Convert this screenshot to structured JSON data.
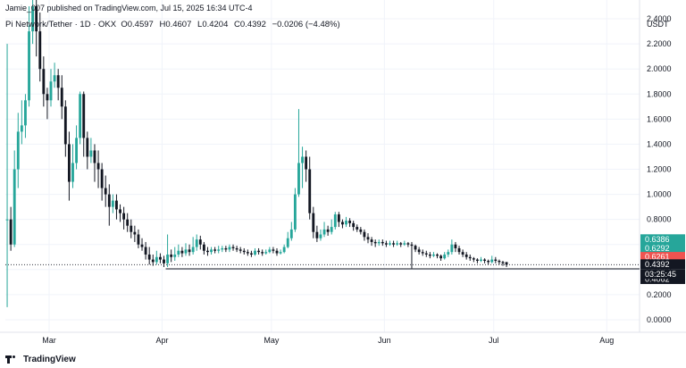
{
  "header": {
    "published": "Jamie_007 published on TradingView.com, Jul 15, 2025 16:34 UTC-4",
    "symbol": "Pi Network/Tether · 1D · OKX",
    "ohlc": [
      {
        "label": "O",
        "value": "0.4597"
      },
      {
        "label": "H",
        "value": "0.4607"
      },
      {
        "label": "L",
        "value": "0.4204"
      },
      {
        "label": "C",
        "value": "0.4392"
      }
    ],
    "change": "−0.0206 (−4.48%)"
  },
  "footer": {
    "brand": "TradingView"
  },
  "colors": {
    "up": "#26a69a",
    "down": "#131722",
    "grid": "#f0f3fa",
    "text": "#131722",
    "badge_current": "#131722",
    "badge_green": "#26a69a",
    "badge_red": "#ef5350"
  },
  "chart_data": {
    "type": "candlestick",
    "y_axis_title": "USDT",
    "ylim": [
      -0.1,
      2.55
    ],
    "y_ticks": [
      {
        "v": 0.0,
        "label": "0.0000"
      },
      {
        "v": 0.2,
        "label": "0.2000"
      },
      {
        "v": 0.4,
        "label": "0.4000"
      },
      {
        "v": 0.6,
        "label": "0.6000"
      },
      {
        "v": 0.8,
        "label": "0.8000"
      },
      {
        "v": 1.0,
        "label": "1.0000"
      },
      {
        "v": 1.2,
        "label": "1.2000"
      },
      {
        "v": 1.4,
        "label": "1.4000"
      },
      {
        "v": 1.6,
        "label": "1.6000"
      },
      {
        "v": 1.8,
        "label": "1.8000"
      },
      {
        "v": 2.0,
        "label": "2.0000"
      },
      {
        "v": 2.2,
        "label": "2.2000"
      },
      {
        "v": 2.4,
        "label": "2.4000"
      }
    ],
    "x_range_days": [
      0,
      174
    ],
    "x_ticks": [
      {
        "day": 12,
        "label": "Mar"
      },
      {
        "day": 43,
        "label": "Apr"
      },
      {
        "day": 73,
        "label": "May"
      },
      {
        "day": 104,
        "label": "Jun"
      },
      {
        "day": 134,
        "label": "Jul"
      },
      {
        "day": 165,
        "label": "Aug"
      }
    ],
    "candles": [
      [
        0.8,
        0.8,
        2.2,
        0.1
      ],
      [
        0.8,
        0.6,
        0.9,
        0.55
      ],
      [
        0.6,
        1.2,
        1.35,
        0.58
      ],
      [
        1.2,
        1.5,
        1.65,
        1.05
      ],
      [
        1.5,
        1.55,
        1.75,
        1.4
      ],
      [
        1.55,
        1.75,
        1.8,
        1.45
      ],
      [
        1.75,
        2.3,
        2.5,
        1.7
      ],
      [
        2.3,
        2.5,
        2.55,
        2.2
      ],
      [
        2.5,
        2.3,
        2.55,
        2.1
      ],
      [
        2.3,
        2.0,
        2.45,
        1.9
      ],
      [
        2.0,
        1.8,
        2.1,
        1.7
      ],
      [
        1.8,
        1.75,
        1.85,
        1.6
      ],
      [
        1.75,
        1.9,
        2.0,
        1.7
      ],
      [
        1.9,
        1.95,
        2.05,
        1.85
      ],
      [
        1.95,
        1.85,
        2.0,
        1.75
      ],
      [
        1.85,
        1.7,
        1.95,
        1.6
      ],
      [
        1.7,
        1.4,
        1.75,
        1.3
      ],
      [
        1.4,
        1.1,
        1.5,
        0.95
      ],
      [
        1.1,
        1.25,
        1.4,
        1.05
      ],
      [
        1.25,
        1.45,
        1.55,
        1.2
      ],
      [
        1.45,
        1.8,
        1.82,
        1.4
      ],
      [
        1.8,
        1.45,
        1.82,
        1.3
      ],
      [
        1.45,
        1.3,
        1.5,
        1.2
      ],
      [
        1.3,
        1.35,
        1.45,
        1.25
      ],
      [
        1.35,
        1.25,
        1.4,
        1.1
      ],
      [
        1.25,
        1.2,
        1.35,
        1.05
      ],
      [
        1.2,
        1.05,
        1.25,
        0.95
      ],
      [
        1.05,
        1.0,
        1.15,
        0.9
      ],
      [
        1.0,
        0.9,
        1.08,
        0.75
      ],
      [
        0.9,
        0.95,
        1.0,
        0.85
      ],
      [
        0.95,
        0.88,
        1.0,
        0.8
      ],
      [
        0.88,
        0.85,
        0.92,
        0.78
      ],
      [
        0.85,
        0.8,
        0.9,
        0.72
      ],
      [
        0.8,
        0.75,
        0.85,
        0.7
      ],
      [
        0.75,
        0.7,
        0.8,
        0.65
      ],
      [
        0.7,
        0.68,
        0.75,
        0.62
      ],
      [
        0.68,
        0.6,
        0.72,
        0.57
      ],
      [
        0.6,
        0.58,
        0.65,
        0.55
      ],
      [
        0.58,
        0.52,
        0.62,
        0.48
      ],
      [
        0.52,
        0.48,
        0.58,
        0.44
      ],
      [
        0.48,
        0.46,
        0.52,
        0.43
      ],
      [
        0.46,
        0.5,
        0.55,
        0.44
      ],
      [
        0.5,
        0.48,
        0.53,
        0.45
      ],
      [
        0.48,
        0.45,
        0.51,
        0.42
      ],
      [
        0.45,
        0.52,
        0.68,
        0.42
      ],
      [
        0.52,
        0.5,
        0.56,
        0.46
      ],
      [
        0.5,
        0.52,
        0.58,
        0.47
      ],
      [
        0.52,
        0.55,
        0.6,
        0.5
      ],
      [
        0.55,
        0.53,
        0.58,
        0.5
      ],
      [
        0.53,
        0.56,
        0.61,
        0.51
      ],
      [
        0.56,
        0.54,
        0.6,
        0.51
      ],
      [
        0.54,
        0.58,
        0.66,
        0.52
      ],
      [
        0.58,
        0.64,
        0.68,
        0.55
      ],
      [
        0.64,
        0.6,
        0.67,
        0.56
      ],
      [
        0.6,
        0.55,
        0.62,
        0.52
      ],
      [
        0.55,
        0.54,
        0.58,
        0.51
      ],
      [
        0.54,
        0.56,
        0.58,
        0.52
      ],
      [
        0.56,
        0.55,
        0.58,
        0.53
      ],
      [
        0.55,
        0.56,
        0.59,
        0.53
      ],
      [
        0.56,
        0.57,
        0.59,
        0.54
      ],
      [
        0.57,
        0.56,
        0.59,
        0.54
      ],
      [
        0.56,
        0.58,
        0.6,
        0.54
      ],
      [
        0.58,
        0.57,
        0.6,
        0.55
      ],
      [
        0.57,
        0.56,
        0.59,
        0.54
      ],
      [
        0.56,
        0.55,
        0.58,
        0.53
      ],
      [
        0.55,
        0.54,
        0.57,
        0.52
      ],
      [
        0.54,
        0.53,
        0.56,
        0.51
      ],
      [
        0.53,
        0.52,
        0.55,
        0.5
      ],
      [
        0.52,
        0.55,
        0.57,
        0.51
      ],
      [
        0.55,
        0.54,
        0.57,
        0.52
      ],
      [
        0.54,
        0.53,
        0.56,
        0.51
      ],
      [
        0.53,
        0.54,
        0.56,
        0.52
      ],
      [
        0.54,
        0.56,
        0.58,
        0.53
      ],
      [
        0.56,
        0.55,
        0.58,
        0.53
      ],
      [
        0.55,
        0.53,
        0.57,
        0.51
      ],
      [
        0.53,
        0.54,
        0.56,
        0.52
      ],
      [
        0.54,
        0.58,
        0.6,
        0.53
      ],
      [
        0.58,
        0.65,
        0.7,
        0.57
      ],
      [
        0.65,
        0.72,
        0.78,
        0.63
      ],
      [
        0.72,
        1.0,
        1.05,
        0.7
      ],
      [
        1.0,
        1.25,
        1.68,
        0.98
      ],
      [
        1.25,
        1.3,
        1.38,
        1.05
      ],
      [
        1.3,
        1.2,
        1.35,
        1.1
      ],
      [
        1.2,
        0.85,
        1.3,
        0.8
      ],
      [
        0.85,
        0.7,
        0.9,
        0.65
      ],
      [
        0.7,
        0.65,
        0.75,
        0.62
      ],
      [
        0.65,
        0.68,
        0.72,
        0.63
      ],
      [
        0.68,
        0.72,
        0.78,
        0.66
      ],
      [
        0.72,
        0.7,
        0.75,
        0.67
      ],
      [
        0.7,
        0.74,
        0.8,
        0.68
      ],
      [
        0.74,
        0.84,
        0.86,
        0.72
      ],
      [
        0.84,
        0.78,
        0.86,
        0.74
      ],
      [
        0.78,
        0.76,
        0.8,
        0.73
      ],
      [
        0.76,
        0.79,
        0.82,
        0.74
      ],
      [
        0.79,
        0.77,
        0.81,
        0.74
      ],
      [
        0.77,
        0.74,
        0.79,
        0.71
      ],
      [
        0.74,
        0.72,
        0.76,
        0.7
      ],
      [
        0.72,
        0.7,
        0.74,
        0.68
      ],
      [
        0.7,
        0.66,
        0.72,
        0.63
      ],
      [
        0.66,
        0.64,
        0.69,
        0.61
      ],
      [
        0.64,
        0.62,
        0.66,
        0.59
      ],
      [
        0.62,
        0.61,
        0.64,
        0.58
      ],
      [
        0.61,
        0.62,
        0.64,
        0.59
      ],
      [
        0.62,
        0.61,
        0.64,
        0.59
      ],
      [
        0.61,
        0.6,
        0.63,
        0.58
      ],
      [
        0.6,
        0.61,
        0.63,
        0.59
      ],
      [
        0.61,
        0.6,
        0.63,
        0.58
      ],
      [
        0.6,
        0.61,
        0.63,
        0.59
      ],
      [
        0.61,
        0.6,
        0.62,
        0.58
      ],
      [
        0.6,
        0.61,
        0.63,
        0.59
      ],
      [
        0.61,
        0.6,
        0.62,
        0.58
      ],
      [
        0.6,
        0.59,
        0.62,
        0.41
      ],
      [
        0.59,
        0.56,
        0.6,
        0.54
      ],
      [
        0.56,
        0.54,
        0.58,
        0.52
      ],
      [
        0.54,
        0.53,
        0.56,
        0.51
      ],
      [
        0.53,
        0.52,
        0.55,
        0.5
      ],
      [
        0.52,
        0.51,
        0.54,
        0.49
      ],
      [
        0.51,
        0.52,
        0.54,
        0.5
      ],
      [
        0.52,
        0.51,
        0.53,
        0.49
      ],
      [
        0.51,
        0.49,
        0.52,
        0.47
      ],
      [
        0.49,
        0.52,
        0.54,
        0.48
      ],
      [
        0.52,
        0.54,
        0.56,
        0.5
      ],
      [
        0.54,
        0.6,
        0.64,
        0.52
      ],
      [
        0.6,
        0.57,
        0.62,
        0.54
      ],
      [
        0.57,
        0.54,
        0.59,
        0.52
      ],
      [
        0.54,
        0.52,
        0.56,
        0.5
      ],
      [
        0.52,
        0.5,
        0.54,
        0.48
      ],
      [
        0.5,
        0.49,
        0.52,
        0.47
      ],
      [
        0.49,
        0.48,
        0.5,
        0.46
      ],
      [
        0.48,
        0.47,
        0.49,
        0.45
      ],
      [
        0.47,
        0.48,
        0.5,
        0.46
      ],
      [
        0.48,
        0.47,
        0.49,
        0.45
      ],
      [
        0.47,
        0.46,
        0.48,
        0.44
      ],
      [
        0.46,
        0.48,
        0.51,
        0.45
      ],
      [
        0.48,
        0.47,
        0.5,
        0.45
      ],
      [
        0.47,
        0.46,
        0.48,
        0.44
      ],
      [
        0.46,
        0.45,
        0.47,
        0.43
      ],
      [
        0.4597,
        0.4392,
        0.4607,
        0.4204
      ]
    ],
    "horizontal_line": 0.4062,
    "price_labels": [
      {
        "v": 0.6386,
        "label": "0.6386",
        "color": "badge_green"
      },
      {
        "v": 0.6292,
        "label": "0.6292",
        "color": "badge_green"
      },
      {
        "v": 0.6261,
        "label": "0.6261",
        "color": "badge_red"
      },
      {
        "v": 0.4392,
        "label": "0.4392",
        "color": "badge_current"
      },
      {
        "v": 0.4062,
        "label": "0.4062",
        "color": "badge_current"
      }
    ],
    "countdown": "03:25:45"
  }
}
